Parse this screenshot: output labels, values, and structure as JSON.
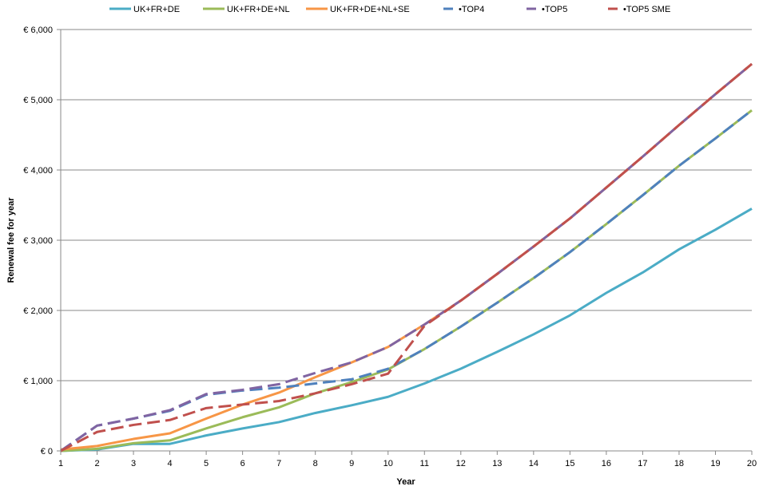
{
  "chart_data": {
    "type": "line",
    "title": "",
    "xlabel": "Year",
    "ylabel": "Renewal fee for year",
    "x": [
      1,
      2,
      3,
      4,
      5,
      6,
      7,
      8,
      9,
      10,
      11,
      12,
      13,
      14,
      15,
      16,
      17,
      18,
      19,
      20
    ],
    "xlim": [
      1,
      20
    ],
    "ylim": [
      0,
      6000
    ],
    "yticks": [
      0,
      1000,
      2000,
      3000,
      4000,
      5000,
      6000
    ],
    "ytick_labels": [
      "€ 0",
      "€ 1,000",
      "€ 2,000",
      "€ 3,000",
      "€ 4,000",
      "€ 5,000",
      "€ 6,000"
    ],
    "grid": true,
    "legend_position": "top",
    "series": [
      {
        "name": "UK+FR+DE",
        "color": "#4BACC6",
        "dashed": false,
        "values": [
          0,
          20,
          100,
          100,
          220,
          320,
          410,
          540,
          650,
          770,
          960,
          1170,
          1410,
          1660,
          1930,
          2250,
          2540,
          2870,
          3150,
          3450
        ]
      },
      {
        "name": "UK+FR+DE+NL",
        "color": "#9BBB59",
        "dashed": false,
        "values": [
          0,
          30,
          110,
          150,
          320,
          480,
          620,
          820,
          980,
          1160,
          1450,
          1770,
          2110,
          2460,
          2830,
          3230,
          3640,
          4060,
          4450,
          4850
        ]
      },
      {
        "name": "UK+FR+DE+NL+SE",
        "color": "#F79646",
        "dashed": false,
        "values": [
          20,
          70,
          170,
          250,
          460,
          660,
          830,
          1050,
          1260,
          1480,
          1800,
          2140,
          2520,
          2910,
          3310,
          3750,
          4190,
          4640,
          5080,
          5510
        ]
      },
      {
        "name": "TOP4",
        "color": "#4F81BD",
        "dashed": true,
        "values": [
          0,
          360,
          460,
          570,
          800,
          860,
          900,
          960,
          1020,
          1170,
          1450,
          1770,
          2110,
          2460,
          2830,
          3230,
          3640,
          4060,
          4450,
          4850
        ]
      },
      {
        "name": "TOP5",
        "color": "#8064A2",
        "dashed": true,
        "values": [
          0,
          360,
          460,
          580,
          810,
          870,
          950,
          1110,
          1260,
          1480,
          1800,
          2140,
          2520,
          2910,
          3310,
          3750,
          4190,
          4640,
          5080,
          5510
        ]
      },
      {
        "name": "TOP5 SME",
        "color": "#C0504D",
        "dashed": true,
        "values": [
          0,
          270,
          370,
          440,
          610,
          660,
          710,
          820,
          950,
          1100,
          1780,
          2140,
          2520,
          2910,
          3310,
          3750,
          4190,
          4640,
          5080,
          5510
        ]
      }
    ]
  }
}
